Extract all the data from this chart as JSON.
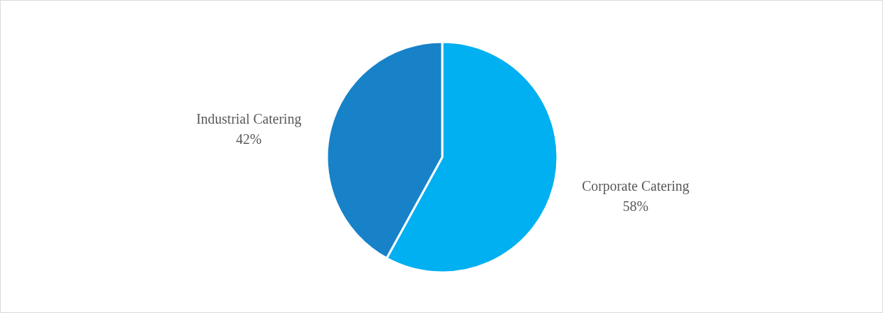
{
  "chart_data": {
    "type": "pie",
    "categories": [
      "Corporate Catering",
      "Industrial Catering"
    ],
    "values": [
      58,
      42
    ],
    "value_labels": [
      "58%",
      "42%"
    ],
    "colors": [
      "#00b0f0",
      "#1782c8"
    ]
  }
}
